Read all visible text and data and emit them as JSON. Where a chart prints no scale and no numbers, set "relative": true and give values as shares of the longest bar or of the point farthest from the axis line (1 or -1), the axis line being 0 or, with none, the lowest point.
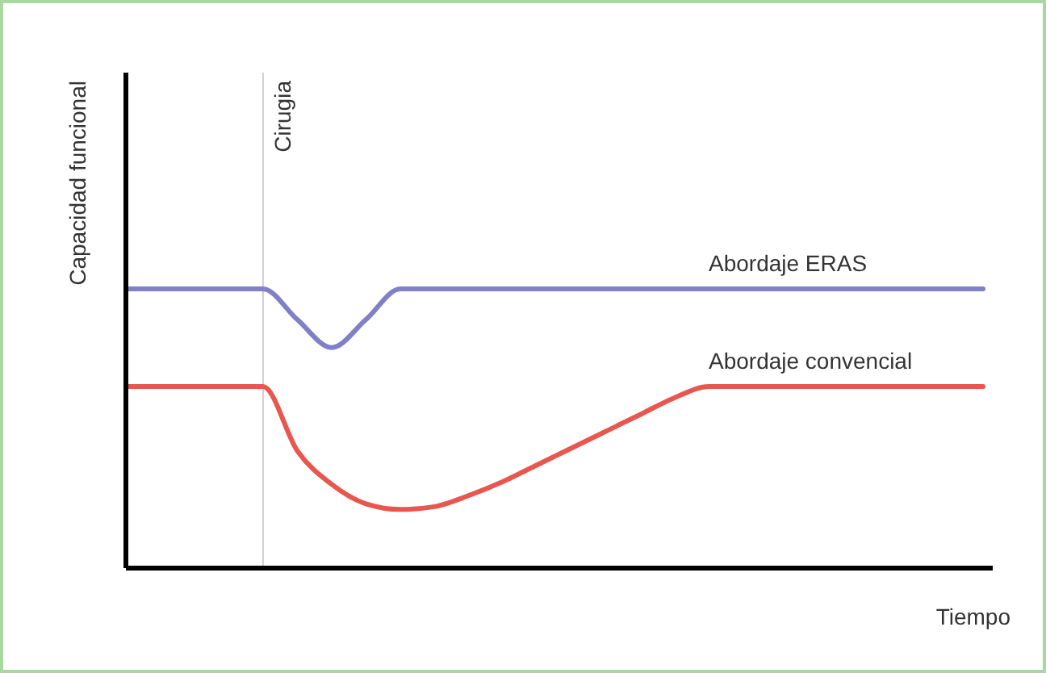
{
  "chart_data": {
    "type": "line",
    "relative": true,
    "xlabel": "Tiempo",
    "ylabel": "Capacidad funcional",
    "legend": false,
    "grid": false,
    "marker": "none",
    "line_style": "solid",
    "categories": [
      null,
      null,
      null,
      null,
      null,
      null,
      null,
      null,
      null,
      null,
      null,
      null,
      null,
      null,
      null,
      null,
      null,
      null,
      null,
      null,
      null,
      null,
      null,
      null,
      null,
      null
    ],
    "series": [
      {
        "name": "Abordaje ERAS",
        "color": "#7f80c8",
        "values": [
          1,
          1,
          1,
          1,
          1,
          0.89,
          0.79,
          0.89,
          1,
          1,
          1,
          1,
          1,
          1,
          1,
          1,
          1,
          1,
          1,
          1,
          1,
          1,
          1,
          1,
          1,
          1
        ]
      },
      {
        "name": "Abordaje convencial",
        "color": "#e8574f",
        "values": [
          0.65,
          0.65,
          0.65,
          0.65,
          0.65,
          0.42,
          0.3,
          0.23,
          0.21,
          0.22,
          0.26,
          0.31,
          0.37,
          0.43,
          0.49,
          0.55,
          0.61,
          0.65,
          0.65,
          0.65,
          0.65,
          0.65,
          0.65,
          0.65,
          0.65,
          0.65
        ]
      }
    ],
    "annotations": [
      "Cirugia"
    ]
  }
}
